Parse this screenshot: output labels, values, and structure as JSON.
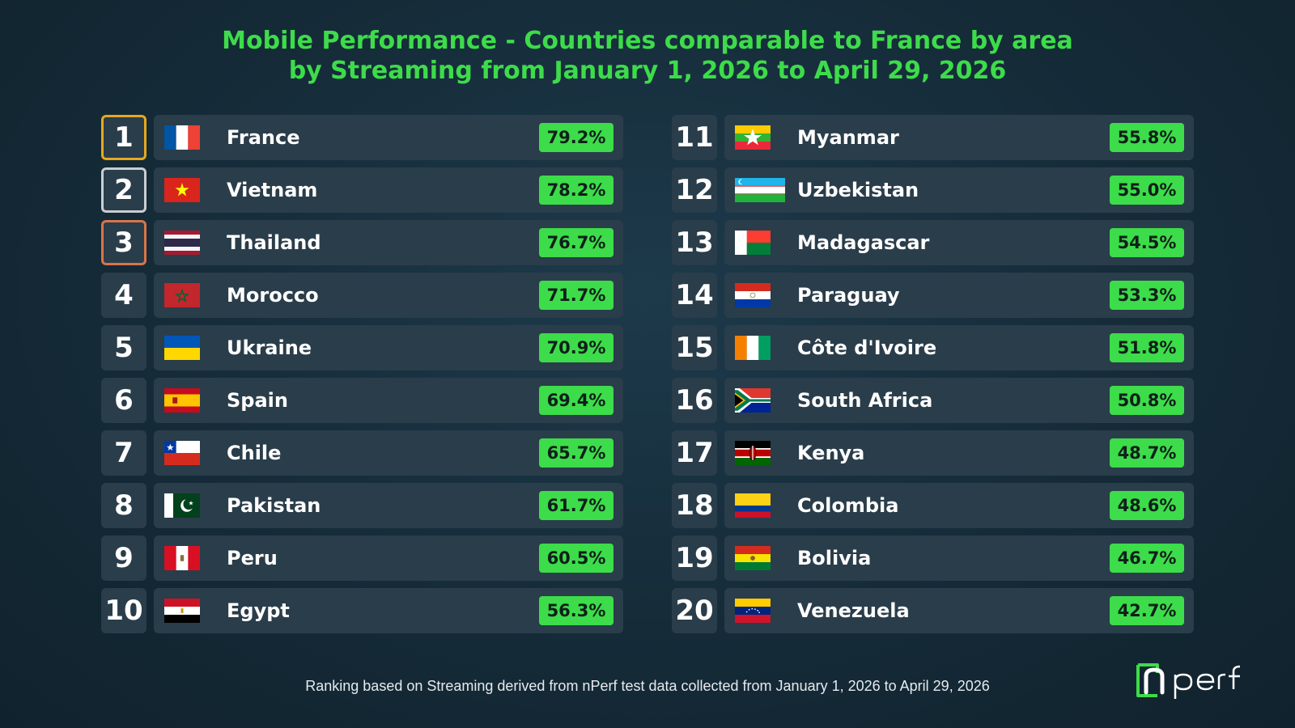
{
  "title": {
    "line1": "Mobile Performance - Countries comparable to France by area",
    "line2": "by Streaming from January 1, 2026 to April 29, 2026"
  },
  "colors": {
    "accent": "#3ddc4a",
    "background": "#152b38",
    "row": "#2a3d4a",
    "gold": "#e5a91f",
    "silver": "#c9ced3",
    "bronze": "#d9744a"
  },
  "rankings": [
    {
      "rank": "1",
      "country": "France",
      "value": "79.2%",
      "flag": "france-flag-icon"
    },
    {
      "rank": "2",
      "country": "Vietnam",
      "value": "78.2%",
      "flag": "vietnam-flag-icon"
    },
    {
      "rank": "3",
      "country": "Thailand",
      "value": "76.7%",
      "flag": "thailand-flag-icon"
    },
    {
      "rank": "4",
      "country": "Morocco",
      "value": "71.7%",
      "flag": "morocco-flag-icon"
    },
    {
      "rank": "5",
      "country": "Ukraine",
      "value": "70.9%",
      "flag": "ukraine-flag-icon"
    },
    {
      "rank": "6",
      "country": "Spain",
      "value": "69.4%",
      "flag": "spain-flag-icon"
    },
    {
      "rank": "7",
      "country": "Chile",
      "value": "65.7%",
      "flag": "chile-flag-icon"
    },
    {
      "rank": "8",
      "country": "Pakistan",
      "value": "61.7%",
      "flag": "pakistan-flag-icon"
    },
    {
      "rank": "9",
      "country": "Peru",
      "value": "60.5%",
      "flag": "peru-flag-icon"
    },
    {
      "rank": "10",
      "country": "Egypt",
      "value": "56.3%",
      "flag": "egypt-flag-icon"
    },
    {
      "rank": "11",
      "country": "Myanmar",
      "value": "55.8%",
      "flag": "myanmar-flag-icon"
    },
    {
      "rank": "12",
      "country": "Uzbekistan",
      "value": "55.0%",
      "flag": "uzbekistan-flag-icon"
    },
    {
      "rank": "13",
      "country": "Madagascar",
      "value": "54.5%",
      "flag": "madagascar-flag-icon"
    },
    {
      "rank": "14",
      "country": "Paraguay",
      "value": "53.3%",
      "flag": "paraguay-flag-icon"
    },
    {
      "rank": "15",
      "country": "Côte d'Ivoire",
      "value": "51.8%",
      "flag": "cote-divoire-flag-icon"
    },
    {
      "rank": "16",
      "country": "South Africa",
      "value": "50.8%",
      "flag": "south-africa-flag-icon"
    },
    {
      "rank": "17",
      "country": "Kenya",
      "value": "48.7%",
      "flag": "kenya-flag-icon"
    },
    {
      "rank": "18",
      "country": "Colombia",
      "value": "48.6%",
      "flag": "colombia-flag-icon"
    },
    {
      "rank": "19",
      "country": "Bolivia",
      "value": "46.7%",
      "flag": "bolivia-flag-icon"
    },
    {
      "rank": "20",
      "country": "Venezuela",
      "value": "42.7%",
      "flag": "venezuela-flag-icon"
    }
  ],
  "footer": "Ranking based on Streaming derived from nPerf test data collected from January 1, 2026 to April 29, 2026",
  "logo": {
    "text": "nperf",
    "icon": "nperf-logo-icon"
  }
}
